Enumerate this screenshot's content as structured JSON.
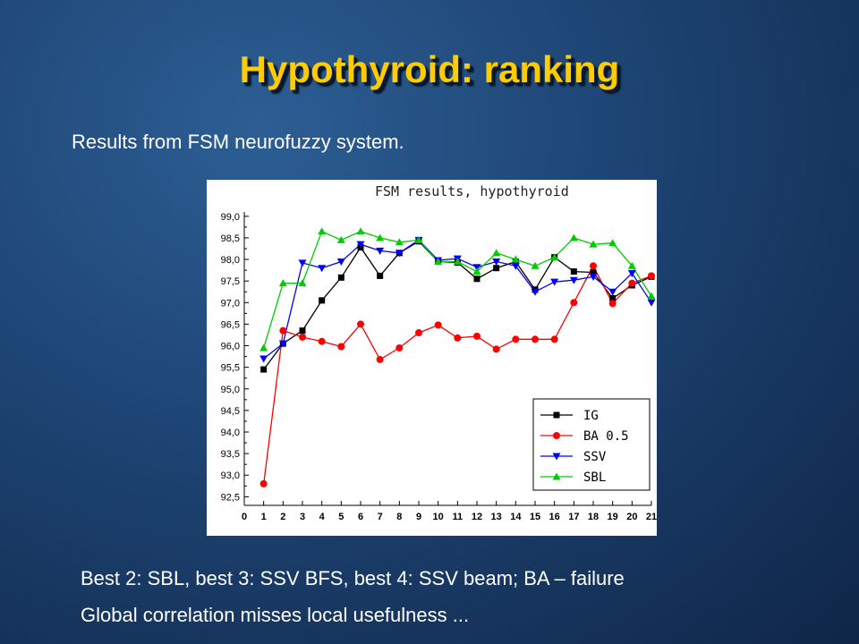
{
  "slide": {
    "title": "Hypothyroid: ranking",
    "subtitle": "Results from FSM neurofuzzy system.",
    "notes": [
      "Best 2: SBL, best 3: SSV BFS, best 4: SSV beam; BA – failure",
      "Global correlation misses local usefulness ..."
    ]
  },
  "chart_data": {
    "type": "line",
    "title": "FSM results, hypothyroid",
    "xlabel": "",
    "ylabel": "",
    "xlim": [
      0,
      21
    ],
    "ylim": [
      92.3,
      99.1
    ],
    "x_ticks": [
      0,
      1,
      2,
      3,
      4,
      5,
      6,
      7,
      8,
      9,
      10,
      11,
      12,
      13,
      14,
      15,
      16,
      17,
      18,
      19,
      20,
      21
    ],
    "y_ticks": [
      "92,5",
      "93,0",
      "93,5",
      "94,0",
      "94,5",
      "95,0",
      "95,5",
      "96,0",
      "96,5",
      "97,0",
      "97,5",
      "98,0",
      "98,5",
      "99,0"
    ],
    "grid": false,
    "legend_position": "bottom-right",
    "x": [
      1,
      2,
      3,
      4,
      5,
      6,
      7,
      8,
      9,
      10,
      11,
      12,
      13,
      14,
      15,
      16,
      17,
      18,
      19,
      20,
      21
    ],
    "series": [
      {
        "name": "IG",
        "color": "#000000",
        "marker": "square",
        "values": [
          95.45,
          96.05,
          96.35,
          97.05,
          97.58,
          98.28,
          97.62,
          98.15,
          98.42,
          97.95,
          97.93,
          97.55,
          97.8,
          97.95,
          97.3,
          98.05,
          97.72,
          97.7,
          97.1,
          97.4,
          97.6
        ]
      },
      {
        "name": "BA 0.5",
        "color": "#ff0000",
        "marker": "circle",
        "values": [
          92.8,
          96.35,
          96.2,
          96.1,
          95.98,
          96.5,
          95.68,
          95.95,
          96.3,
          96.48,
          96.18,
          96.22,
          95.92,
          96.15,
          96.15,
          96.15,
          97.0,
          97.85,
          96.98,
          97.45,
          97.62
        ]
      },
      {
        "name": "SSV",
        "color": "#0000ff",
        "marker": "triangle-down",
        "values": [
          95.7,
          96.05,
          97.92,
          97.8,
          97.95,
          98.35,
          98.2,
          98.15,
          98.45,
          97.98,
          98.02,
          97.82,
          97.95,
          97.85,
          97.25,
          97.48,
          97.52,
          97.6,
          97.25,
          97.68,
          97.0
        ]
      },
      {
        "name": "SBL",
        "color": "#00cc00",
        "marker": "triangle-up",
        "values": [
          95.95,
          97.45,
          97.45,
          98.65,
          98.45,
          98.65,
          98.5,
          98.4,
          98.45,
          97.95,
          97.95,
          97.72,
          98.15,
          98.0,
          97.85,
          98.05,
          98.5,
          98.35,
          98.38,
          97.85,
          97.15
        ]
      }
    ]
  }
}
